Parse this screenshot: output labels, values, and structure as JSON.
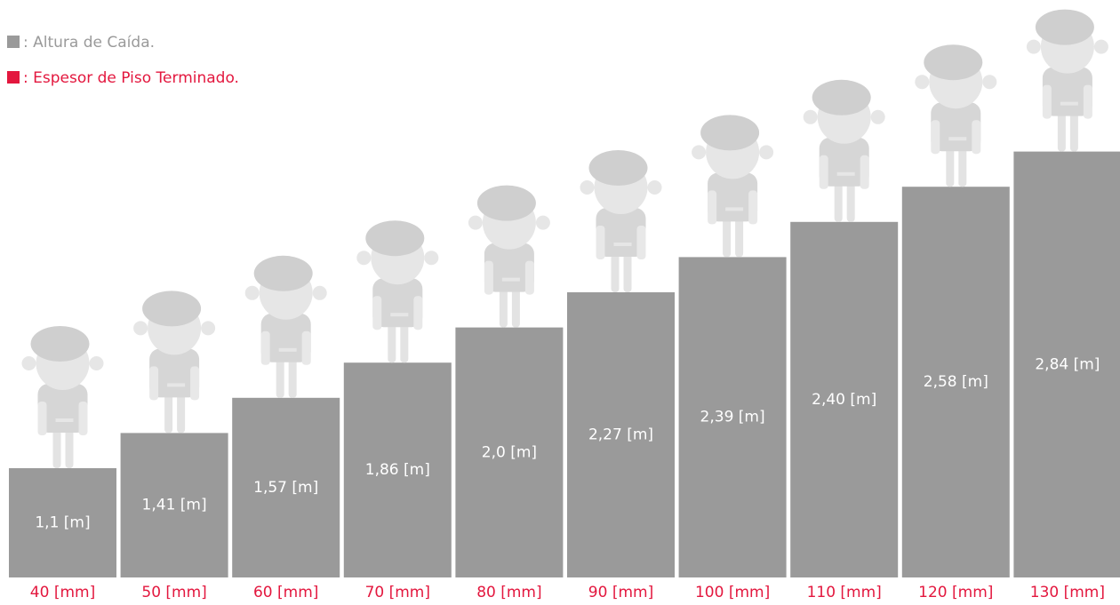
{
  "legend": [
    {
      "label": ": Altura de Caída."
    },
    {
      "label": ": Espesor de Piso Terminado."
    }
  ],
  "items": [
    {
      "height": "1,1 [m]",
      "thickness": "40 [mm]"
    },
    {
      "height": "1,41 [m]",
      "thickness": "50 [mm]"
    },
    {
      "height": "1,57 [m]",
      "thickness": "60 [mm]"
    },
    {
      "height": "1,86 [m]",
      "thickness": "70 [mm]"
    },
    {
      "height": "2,0 [m]",
      "thickness": "80 [mm]"
    },
    {
      "height": "2,27 [m]",
      "thickness": "90 [mm]"
    },
    {
      "height": "2,39 [m]",
      "thickness": "100 [mm]"
    },
    {
      "height": "2,40 [m]",
      "thickness": "110 [mm]"
    },
    {
      "height": "2,58 [m]",
      "thickness": "120 [mm]"
    },
    {
      "height": "2,84 [m]",
      "thickness": "130 [mm]"
    }
  ]
}
